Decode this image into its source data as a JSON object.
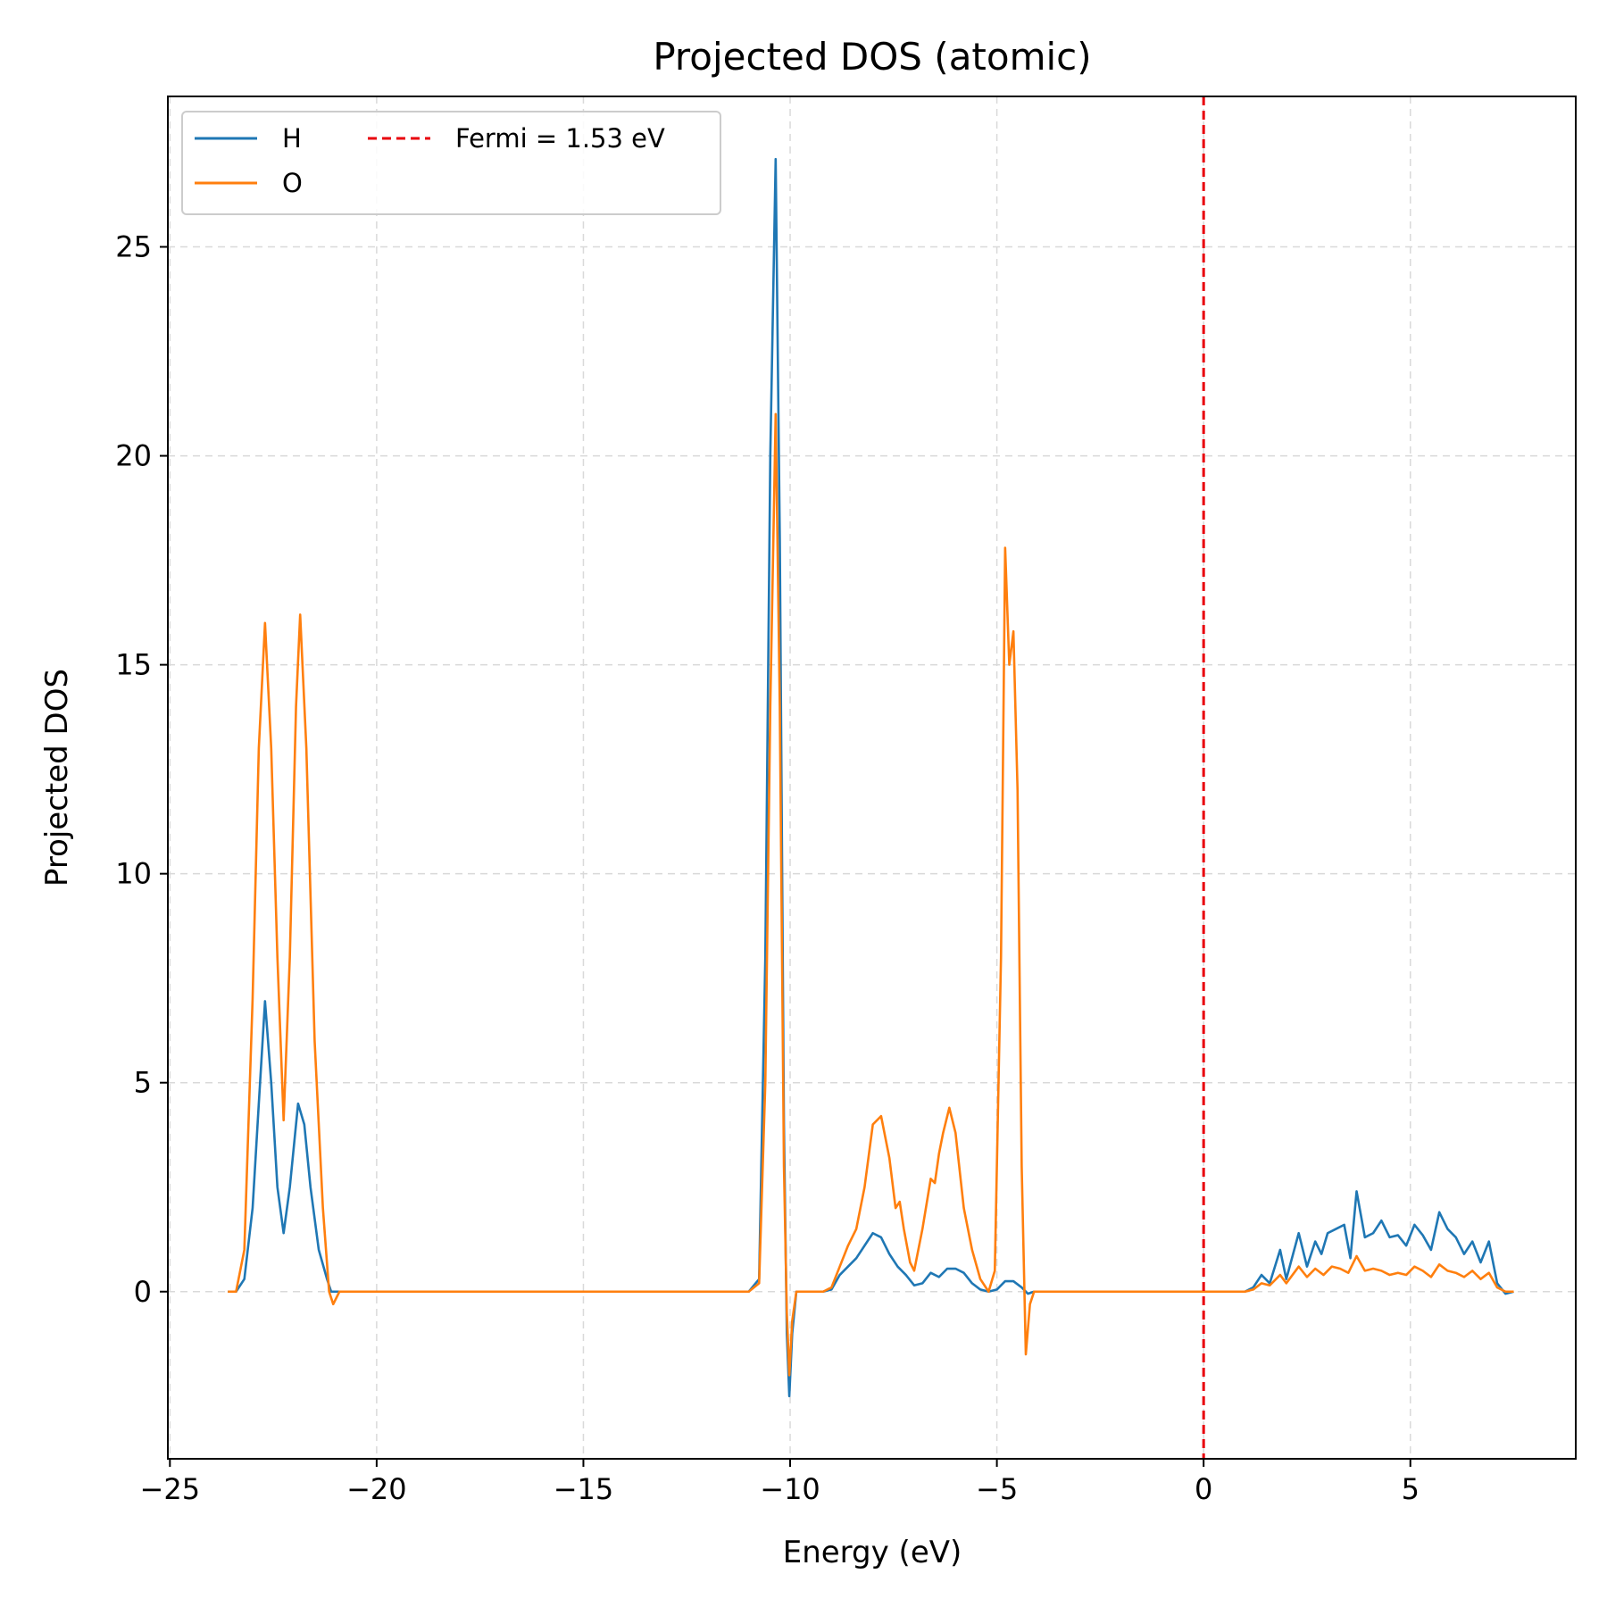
{
  "chart_data": {
    "type": "line",
    "title": "Projected DOS (atomic)",
    "xlabel": "Energy (eV)",
    "ylabel": "Projected DOS",
    "xlim": [
      -25.05,
      9.0
    ],
    "ylim": [
      -4.0,
      28.6
    ],
    "xticks": [
      -25,
      -20,
      -15,
      -10,
      -5,
      0,
      5
    ],
    "xtick_labels": [
      "−25",
      "−20",
      "−15",
      "−10",
      "−5",
      "0",
      "5"
    ],
    "yticks": [
      0,
      5,
      10,
      15,
      20,
      25
    ],
    "ytick_labels": [
      "0",
      "5",
      "10",
      "15",
      "20",
      "25"
    ],
    "grid": true,
    "legend_position": "top-left",
    "legend_columns": 2,
    "colors": {
      "H": "#1f77b4",
      "O": "#ff7f0e",
      "fermi": "#e8000b"
    },
    "series": [
      {
        "name": "H",
        "color": "#1f77b4",
        "points": [
          [
            -23.6,
            0
          ],
          [
            -23.4,
            0.0
          ],
          [
            -23.2,
            0.3
          ],
          [
            -23.0,
            2.0
          ],
          [
            -22.85,
            4.5
          ],
          [
            -22.7,
            6.95
          ],
          [
            -22.55,
            5.0
          ],
          [
            -22.4,
            2.5
          ],
          [
            -22.25,
            1.4
          ],
          [
            -22.1,
            2.5
          ],
          [
            -21.9,
            4.5
          ],
          [
            -21.75,
            4.0
          ],
          [
            -21.6,
            2.5
          ],
          [
            -21.4,
            1.0
          ],
          [
            -21.2,
            0.3
          ],
          [
            -21.1,
            0.0
          ],
          [
            -20.9,
            0
          ],
          [
            -11.0,
            0
          ],
          [
            -10.75,
            0.3
          ],
          [
            -10.6,
            8.0
          ],
          [
            -10.48,
            20.0
          ],
          [
            -10.35,
            27.1
          ],
          [
            -10.25,
            18.0
          ],
          [
            -10.15,
            4.0
          ],
          [
            -10.08,
            -1.0
          ],
          [
            -10.02,
            -2.5
          ],
          [
            -9.95,
            -1.0
          ],
          [
            -9.85,
            0
          ],
          [
            -9.2,
            0
          ],
          [
            -9.0,
            0.05
          ],
          [
            -8.8,
            0.4
          ],
          [
            -8.6,
            0.6
          ],
          [
            -8.4,
            0.8
          ],
          [
            -8.2,
            1.1
          ],
          [
            -8.0,
            1.4
          ],
          [
            -7.8,
            1.3
          ],
          [
            -7.6,
            0.9
          ],
          [
            -7.4,
            0.6
          ],
          [
            -7.2,
            0.4
          ],
          [
            -7.0,
            0.15
          ],
          [
            -6.8,
            0.2
          ],
          [
            -6.6,
            0.45
          ],
          [
            -6.4,
            0.35
          ],
          [
            -6.2,
            0.55
          ],
          [
            -6.0,
            0.55
          ],
          [
            -5.8,
            0.45
          ],
          [
            -5.6,
            0.2
          ],
          [
            -5.4,
            0.05
          ],
          [
            -5.2,
            0.0
          ],
          [
            -5.0,
            0.05
          ],
          [
            -4.8,
            0.25
          ],
          [
            -4.6,
            0.25
          ],
          [
            -4.4,
            0.1
          ],
          [
            -4.25,
            -0.05
          ],
          [
            -4.1,
            0
          ],
          [
            1.0,
            0
          ],
          [
            1.2,
            0.1
          ],
          [
            1.4,
            0.4
          ],
          [
            1.6,
            0.2
          ],
          [
            1.85,
            1.0
          ],
          [
            2.0,
            0.3
          ],
          [
            2.3,
            1.4
          ],
          [
            2.5,
            0.6
          ],
          [
            2.7,
            1.2
          ],
          [
            2.85,
            0.9
          ],
          [
            3.0,
            1.4
          ],
          [
            3.2,
            1.5
          ],
          [
            3.4,
            1.6
          ],
          [
            3.55,
            0.8
          ],
          [
            3.7,
            2.4
          ],
          [
            3.9,
            1.3
          ],
          [
            4.1,
            1.4
          ],
          [
            4.3,
            1.7
          ],
          [
            4.5,
            1.3
          ],
          [
            4.7,
            1.35
          ],
          [
            4.9,
            1.1
          ],
          [
            5.1,
            1.6
          ],
          [
            5.3,
            1.35
          ],
          [
            5.5,
            1.0
          ],
          [
            5.7,
            1.9
          ],
          [
            5.9,
            1.5
          ],
          [
            6.1,
            1.3
          ],
          [
            6.3,
            0.9
          ],
          [
            6.5,
            1.2
          ],
          [
            6.7,
            0.7
          ],
          [
            6.9,
            1.2
          ],
          [
            7.1,
            0.2
          ],
          [
            7.3,
            -0.05
          ],
          [
            7.5,
            0.0
          ]
        ]
      },
      {
        "name": "O",
        "color": "#ff7f0e",
        "points": [
          [
            -23.6,
            0
          ],
          [
            -23.4,
            0.0
          ],
          [
            -23.2,
            1.0
          ],
          [
            -23.0,
            7.0
          ],
          [
            -22.85,
            13.0
          ],
          [
            -22.7,
            16.0
          ],
          [
            -22.55,
            13.0
          ],
          [
            -22.4,
            8.0
          ],
          [
            -22.25,
            4.1
          ],
          [
            -22.1,
            8.0
          ],
          [
            -21.95,
            14.0
          ],
          [
            -21.85,
            16.2
          ],
          [
            -21.7,
            13.0
          ],
          [
            -21.5,
            6.0
          ],
          [
            -21.3,
            2.0
          ],
          [
            -21.15,
            0.0
          ],
          [
            -21.05,
            -0.3
          ],
          [
            -20.9,
            0
          ],
          [
            -11.0,
            0
          ],
          [
            -10.75,
            0.2
          ],
          [
            -10.6,
            5.0
          ],
          [
            -10.48,
            14.0
          ],
          [
            -10.35,
            21.0
          ],
          [
            -10.25,
            14.0
          ],
          [
            -10.15,
            3.0
          ],
          [
            -10.08,
            -0.5
          ],
          [
            -10.02,
            -2.0
          ],
          [
            -9.95,
            -0.7
          ],
          [
            -9.85,
            0
          ],
          [
            -9.2,
            0
          ],
          [
            -9.0,
            0.1
          ],
          [
            -8.8,
            0.6
          ],
          [
            -8.6,
            1.1
          ],
          [
            -8.4,
            1.5
          ],
          [
            -8.2,
            2.5
          ],
          [
            -8.0,
            4.0
          ],
          [
            -7.8,
            4.2
          ],
          [
            -7.6,
            3.2
          ],
          [
            -7.45,
            2.0
          ],
          [
            -7.35,
            2.15
          ],
          [
            -7.25,
            1.5
          ],
          [
            -7.1,
            0.7
          ],
          [
            -7.0,
            0.5
          ],
          [
            -6.8,
            1.5
          ],
          [
            -6.6,
            2.7
          ],
          [
            -6.5,
            2.6
          ],
          [
            -6.4,
            3.3
          ],
          [
            -6.3,
            3.8
          ],
          [
            -6.15,
            4.4
          ],
          [
            -6.0,
            3.8
          ],
          [
            -5.8,
            2.0
          ],
          [
            -5.6,
            1.0
          ],
          [
            -5.4,
            0.3
          ],
          [
            -5.2,
            0.0
          ],
          [
            -5.05,
            0.5
          ],
          [
            -4.9,
            8.0
          ],
          [
            -4.8,
            17.8
          ],
          [
            -4.7,
            15.0
          ],
          [
            -4.6,
            15.8
          ],
          [
            -4.5,
            12.0
          ],
          [
            -4.4,
            3.0
          ],
          [
            -4.3,
            -1.5
          ],
          [
            -4.2,
            -0.3
          ],
          [
            -4.1,
            0
          ],
          [
            1.0,
            0
          ],
          [
            1.2,
            0.05
          ],
          [
            1.4,
            0.2
          ],
          [
            1.6,
            0.15
          ],
          [
            1.85,
            0.4
          ],
          [
            2.0,
            0.2
          ],
          [
            2.3,
            0.6
          ],
          [
            2.5,
            0.35
          ],
          [
            2.7,
            0.55
          ],
          [
            2.9,
            0.4
          ],
          [
            3.1,
            0.6
          ],
          [
            3.3,
            0.55
          ],
          [
            3.5,
            0.45
          ],
          [
            3.7,
            0.85
          ],
          [
            3.9,
            0.5
          ],
          [
            4.1,
            0.55
          ],
          [
            4.3,
            0.5
          ],
          [
            4.5,
            0.4
          ],
          [
            4.7,
            0.45
          ],
          [
            4.9,
            0.4
          ],
          [
            5.1,
            0.6
          ],
          [
            5.3,
            0.5
          ],
          [
            5.5,
            0.35
          ],
          [
            5.7,
            0.65
          ],
          [
            5.9,
            0.5
          ],
          [
            6.1,
            0.45
          ],
          [
            6.3,
            0.35
          ],
          [
            6.5,
            0.5
          ],
          [
            6.7,
            0.3
          ],
          [
            6.9,
            0.45
          ],
          [
            7.1,
            0.1
          ],
          [
            7.3,
            0.0
          ],
          [
            7.5,
            0.0
          ]
        ]
      }
    ],
    "fermi_line": {
      "x": 0,
      "label": "Fermi = 1.53 eV",
      "color": "#e8000b"
    }
  }
}
